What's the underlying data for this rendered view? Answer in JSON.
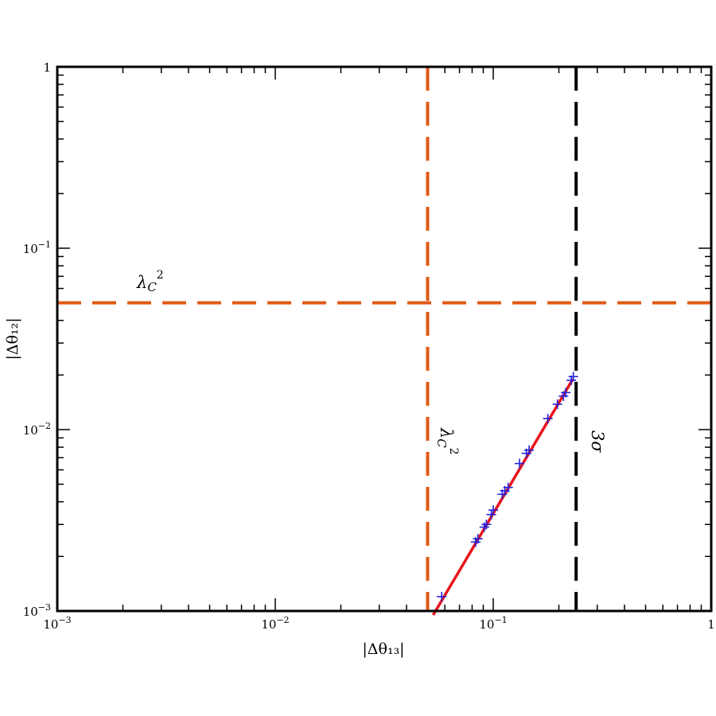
{
  "chart_data": {
    "type": "scatter",
    "xlabel": "|Δθ₁₃|",
    "ylabel": "|Δθ₁₂|",
    "xscale": "log",
    "yscale": "log",
    "xlim": [
      0.001,
      1
    ],
    "ylim": [
      0.001,
      1
    ],
    "grid": false,
    "x_ticks": [
      {
        "value": 0.001,
        "base": "10",
        "exp": "−3"
      },
      {
        "value": 0.01,
        "base": "10",
        "exp": "−2"
      },
      {
        "value": 0.1,
        "base": "10",
        "exp": "−1"
      },
      {
        "value": 1,
        "base": "1",
        "exp": ""
      }
    ],
    "y_ticks": [
      {
        "value": 0.001,
        "base": "10",
        "exp": "−3"
      },
      {
        "value": 0.01,
        "base": "10",
        "exp": "−2"
      },
      {
        "value": 0.1,
        "base": "10",
        "exp": "−1"
      },
      {
        "value": 1,
        "base": "1",
        "exp": ""
      }
    ],
    "series": [
      {
        "type": "scatter",
        "marker": "plus",
        "color": "#2222dd",
        "x": [
          0.058,
          0.083,
          0.085,
          0.091,
          0.093,
          0.098,
          0.1,
          0.11,
          0.113,
          0.117,
          0.132,
          0.142,
          0.146,
          0.178,
          0.197,
          0.21,
          0.215,
          0.228,
          0.233
        ],
        "y": [
          0.0012,
          0.0024,
          0.0025,
          0.0029,
          0.003,
          0.0034,
          0.0036,
          0.0044,
          0.0046,
          0.0048,
          0.0065,
          0.0074,
          0.0077,
          0.0115,
          0.0138,
          0.0153,
          0.016,
          0.0187,
          0.0196
        ]
      },
      {
        "type": "line",
        "color": "#e8141b",
        "x": [
          0.053,
          0.232
        ],
        "y": [
          0.00095,
          0.019
        ]
      }
    ],
    "reference_lines": [
      {
        "orientation": "horizontal",
        "value": 0.05,
        "color": "#e05a14",
        "style": "dashed",
        "label": "λ",
        "label_sub": "C",
        "label_sup": "2"
      },
      {
        "orientation": "vertical",
        "value": 0.05,
        "color": "#e05a14",
        "style": "dashed",
        "label": "λ",
        "label_sub": "C",
        "label_sup": "2"
      },
      {
        "orientation": "vertical",
        "value": 0.24,
        "color": "#000000",
        "style": "dashed",
        "label": "3σ"
      }
    ]
  }
}
